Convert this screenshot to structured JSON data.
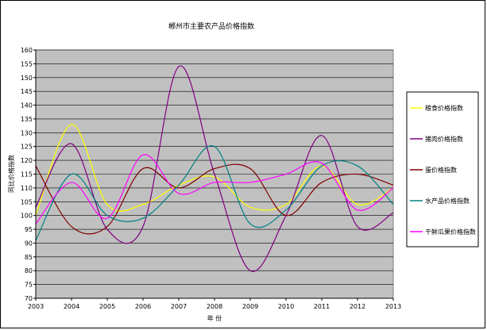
{
  "chart_data": {
    "type": "line",
    "title": "郴州市主要农产品价格指数",
    "xlabel": "年 份",
    "ylabel": "同比价格指数",
    "ylim": [
      70,
      160
    ],
    "ytick_step": 5,
    "grid": "horizontal",
    "legend_position": "right",
    "background_color": "#c0c0c0",
    "x": [
      "2003",
      "2004",
      "2005",
      "2006",
      "2007",
      "2008",
      "2009",
      "2010",
      "2011",
      "2012",
      "2013"
    ],
    "series": [
      {
        "name": "粮食价格指数",
        "color": "#ffff00",
        "values": [
          100,
          133,
          104,
          104,
          111,
          114,
          103,
          104,
          118,
          104,
          110
        ]
      },
      {
        "name": "猪肉价格指数",
        "color": "#800080",
        "values": [
          103,
          126,
          95,
          96,
          154,
          115,
          80,
          100,
          129,
          96,
          101
        ]
      },
      {
        "name": "蛋价格指数",
        "color": "#800000",
        "values": [
          118,
          96,
          96,
          117,
          110,
          117,
          117,
          100,
          112,
          115,
          111
        ]
      },
      {
        "name": "水产品价格指数",
        "color": "#008080",
        "values": [
          91,
          115,
          100,
          99,
          111,
          125,
          97,
          102,
          118,
          118,
          104
        ]
      },
      {
        "name": "干鲜瓜果价格指数",
        "color": "#ff00ff",
        "values": [
          97,
          112,
          99,
          122,
          108,
          112,
          112,
          115,
          119,
          102,
          110
        ]
      }
    ]
  }
}
